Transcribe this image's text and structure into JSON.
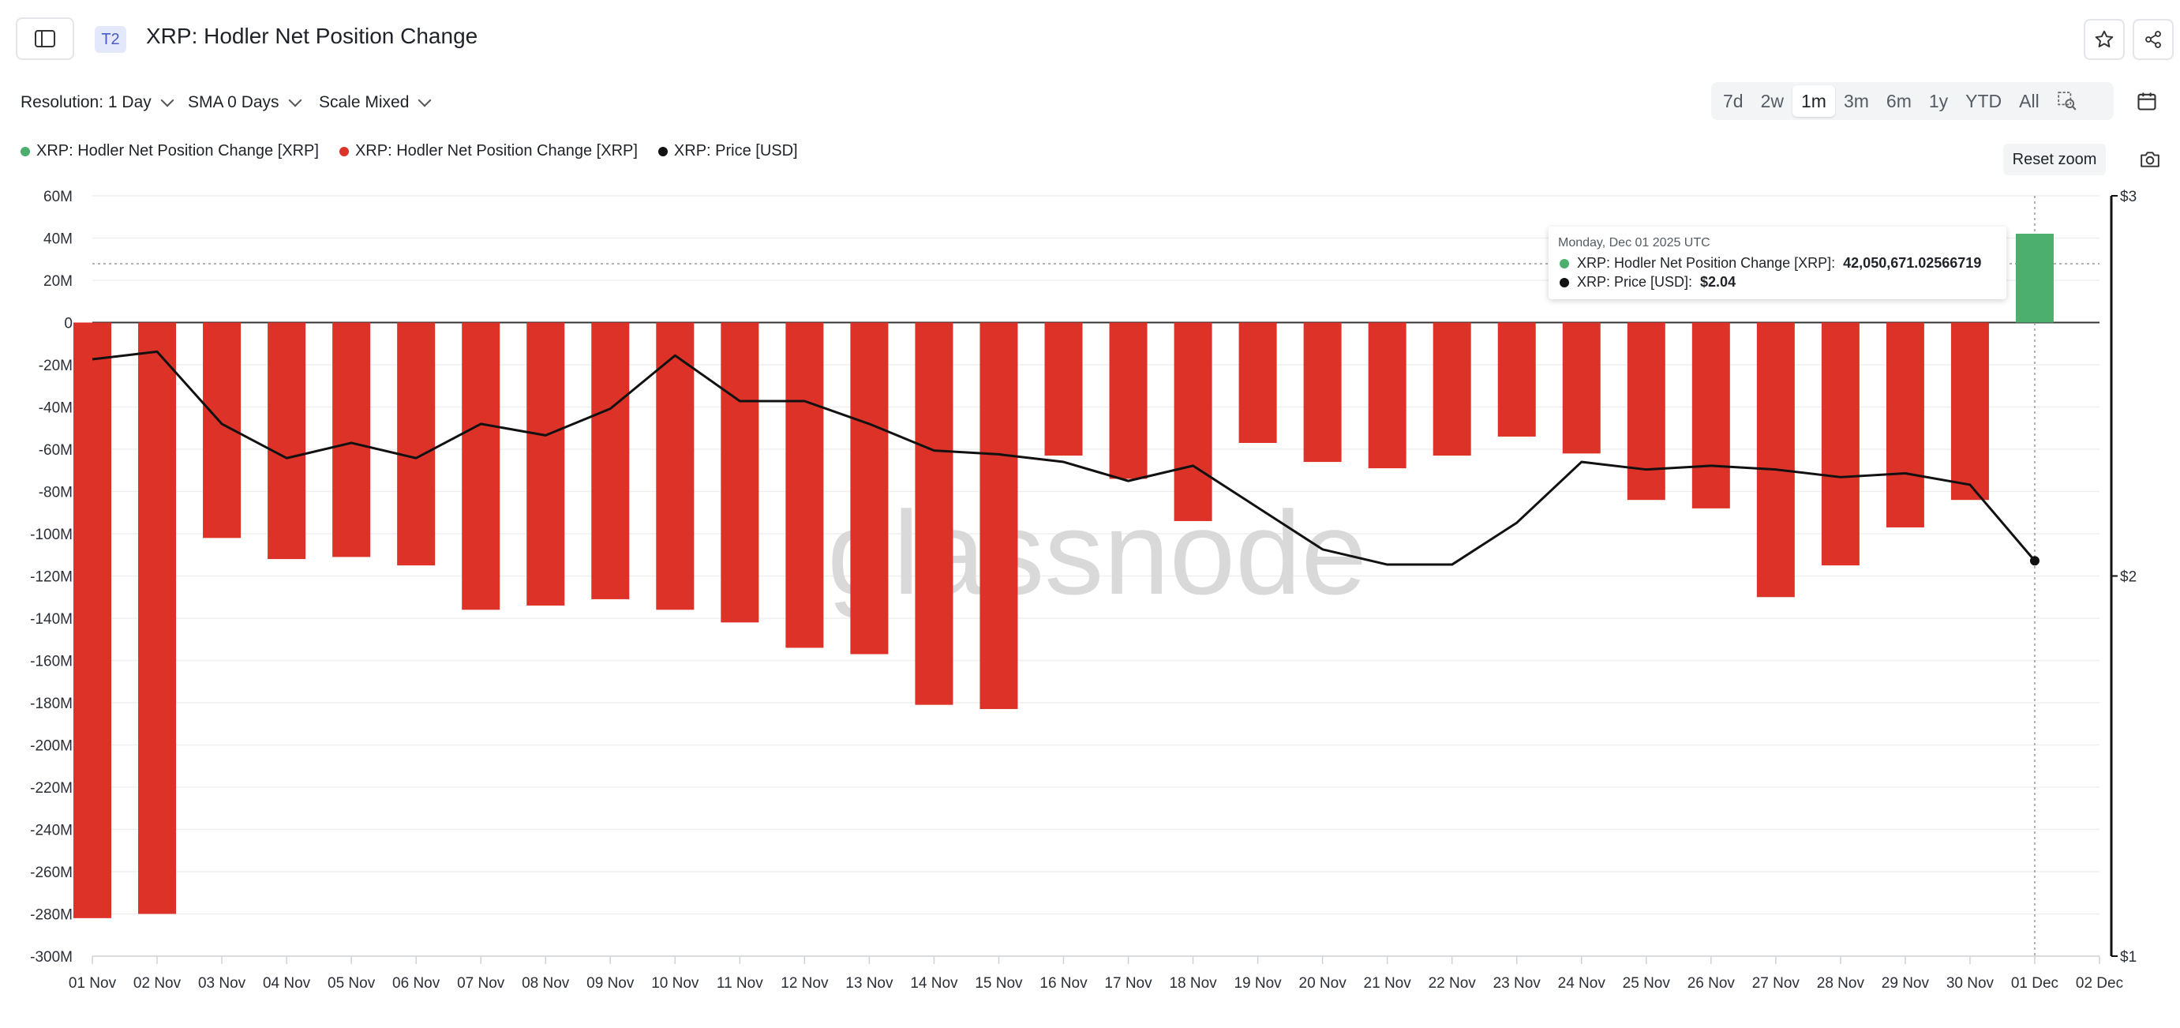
{
  "header": {
    "tier_badge": "T2",
    "title": "XRP: Hodler Net Position Change"
  },
  "controls": {
    "resolution": "Resolution: 1 Day",
    "sma": "SMA 0 Days",
    "scale": "Scale Mixed",
    "ranges": [
      "7d",
      "2w",
      "1m",
      "3m",
      "6m",
      "1y",
      "YTD",
      "All"
    ],
    "active_range": "1m",
    "reset_zoom": "Reset zoom"
  },
  "legend": [
    {
      "label": "XRP: Hodler Net Position Change [XRP]",
      "color": "#4caf6e"
    },
    {
      "label": "XRP: Hodler Net Position Change [XRP]",
      "color": "#dd3228"
    },
    {
      "label": "XRP: Price [USD]",
      "color": "#111111"
    }
  ],
  "tooltip": {
    "date": "Monday, Dec 01 2025 UTC",
    "rows": [
      {
        "label": "XRP: Hodler Net Position Change [XRP]:",
        "value": "42,050,671.02566719",
        "color": "#4caf6e"
      },
      {
        "label": "XRP: Price [USD]:",
        "value": "$2.04",
        "color": "#111111"
      }
    ]
  },
  "watermark": "glassnode",
  "colors": {
    "positive": "#4caf6e",
    "negative": "#dd3228",
    "price": "#111111"
  },
  "chart_data": {
    "type": "bar",
    "categories": [
      "01 Nov",
      "02 Nov",
      "03 Nov",
      "04 Nov",
      "05 Nov",
      "06 Nov",
      "07 Nov",
      "08 Nov",
      "09 Nov",
      "10 Nov",
      "11 Nov",
      "12 Nov",
      "13 Nov",
      "14 Nov",
      "15 Nov",
      "16 Nov",
      "17 Nov",
      "18 Nov",
      "19 Nov",
      "20 Nov",
      "21 Nov",
      "22 Nov",
      "23 Nov",
      "24 Nov",
      "25 Nov",
      "26 Nov",
      "27 Nov",
      "28 Nov",
      "29 Nov",
      "30 Nov",
      "01 Dec",
      "02 Dec"
    ],
    "series": [
      {
        "name": "XRP: Hodler Net Position Change [XRP]",
        "unit": "M XRP",
        "values": [
          -282,
          -280,
          -102,
          -112,
          -111,
          -115,
          -136,
          -134,
          -131,
          -136,
          -142,
          -154,
          -157,
          -181,
          -183,
          -63,
          -74,
          -94,
          -57,
          -66,
          -69,
          -63,
          -54,
          -62,
          -84,
          -88,
          -130,
          -115,
          -97,
          -84,
          42.05,
          null
        ]
      },
      {
        "name": "XRP: Price [USD]",
        "axis": "right",
        "values": [
          2.57,
          2.59,
          2.4,
          2.31,
          2.35,
          2.31,
          2.4,
          2.37,
          2.44,
          2.58,
          2.46,
          2.46,
          2.4,
          2.33,
          2.32,
          2.3,
          2.25,
          2.29,
          2.18,
          2.07,
          2.03,
          2.03,
          2.14,
          2.3,
          2.28,
          2.29,
          2.28,
          2.26,
          2.27,
          2.24,
          2.04,
          null
        ]
      }
    ],
    "y_ticks": [
      "60M",
      "40M",
      "20M",
      "0",
      "-20M",
      "-40M",
      "-60M",
      "-80M",
      "-100M",
      "-120M",
      "-140M",
      "-160M",
      "-180M",
      "-200M",
      "-220M",
      "-240M",
      "-260M",
      "-280M",
      "-300M"
    ],
    "ylim": [
      -300,
      60
    ],
    "y2_ticks": [
      "$3",
      "$2",
      "$1"
    ],
    "y2lim": [
      1,
      3
    ],
    "grid": true,
    "legend_position": "top-left"
  }
}
